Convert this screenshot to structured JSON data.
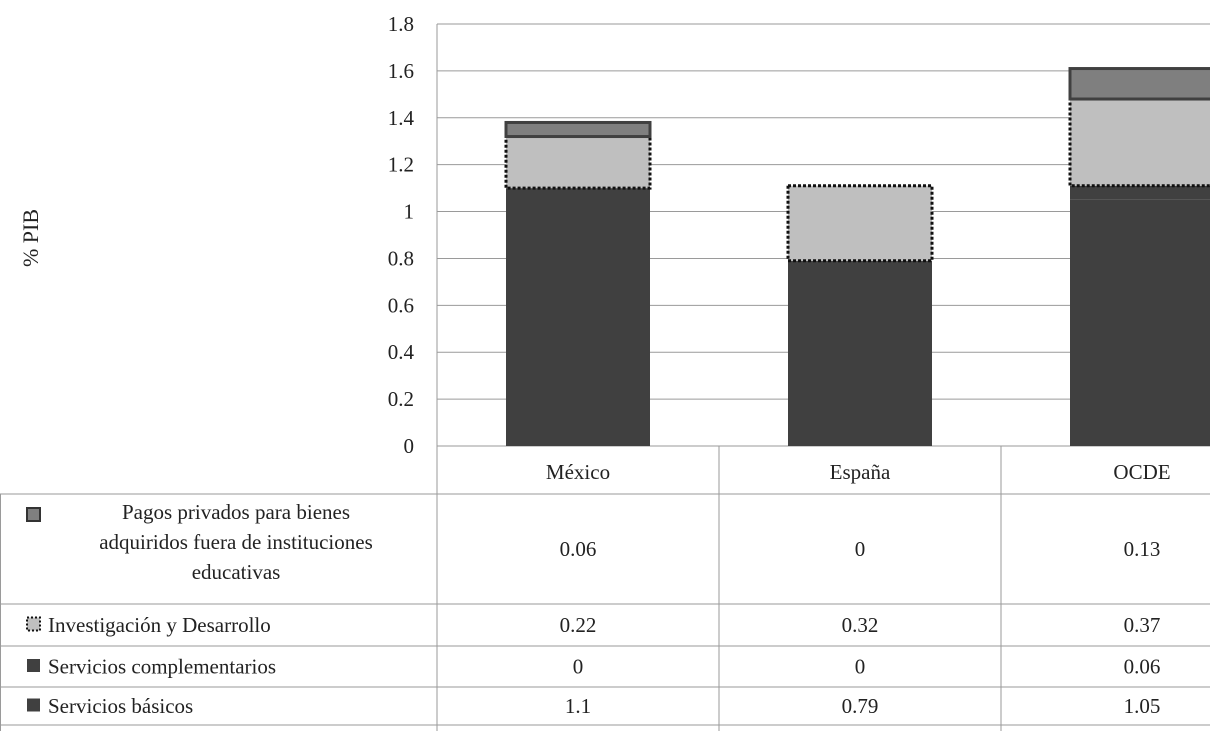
{
  "chart_data": {
    "type": "bar",
    "stacked": true,
    "ylabel": "% PIB",
    "ylim": [
      0,
      1.8
    ],
    "yticks": [
      "0",
      "0.2",
      "0.4",
      "0.6",
      "0.8",
      "1",
      "1.2",
      "1.4",
      "1.6",
      "1.8"
    ],
    "grid": true,
    "legend_placement": "data-table-left",
    "categories": [
      "México",
      "España",
      "OCDE"
    ],
    "series": [
      {
        "name": "Servicios básicos",
        "values": [
          1.1,
          0.79,
          1.05
        ],
        "display": [
          "1.1",
          "0.79",
          "1.05"
        ],
        "color": "#404040",
        "pattern": "solid"
      },
      {
        "name": "Servicios complementarios",
        "values": [
          0,
          0,
          0.06
        ],
        "display": [
          "0",
          "0",
          "0.06"
        ],
        "color": "#404040",
        "pattern": "solid"
      },
      {
        "name": "Investigación y Desarrollo",
        "values": [
          0.22,
          0.32,
          0.37
        ],
        "display": [
          "0.22",
          "0.32",
          "0.37"
        ],
        "color": "#bfbfbf",
        "pattern": "dotted-border"
      },
      {
        "name": "Pagos privados para bienes adquiridos fuera de instituciones educativas",
        "name_lines": [
          "Pagos privados para bienes",
          "adquiridos fuera de instituciones",
          "educativas"
        ],
        "values": [
          0.06,
          0,
          0.13
        ],
        "display": [
          "0.06",
          "0",
          "0.13"
        ],
        "color": "#7f7f7f",
        "pattern": "outlined"
      }
    ]
  }
}
